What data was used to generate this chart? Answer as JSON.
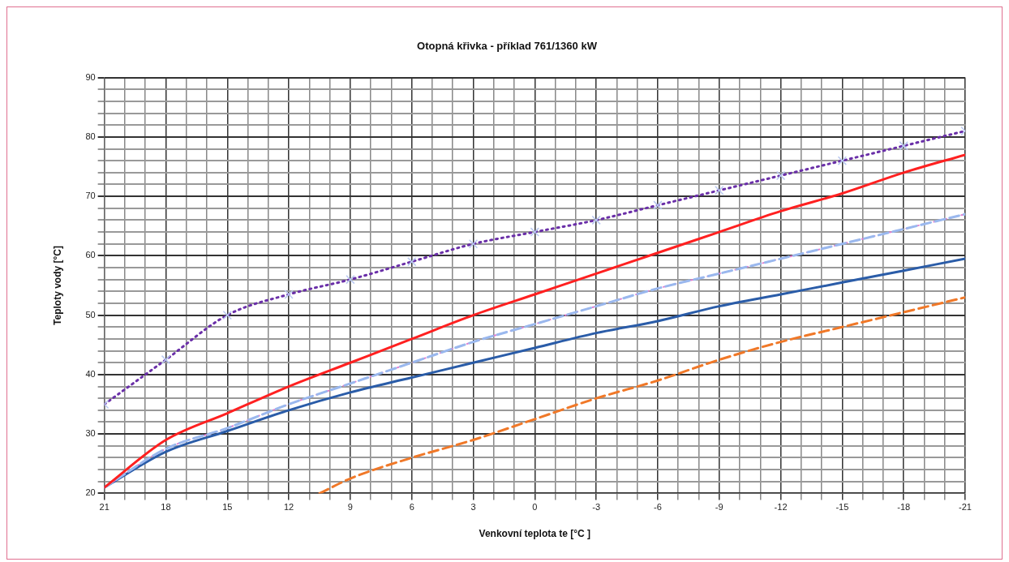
{
  "chart_data": {
    "type": "line",
    "title": "Otopná křivka - příklad 761/1360 kW",
    "xlabel": "Venkovní teplota te [°C ]",
    "ylabel": "Teploty vody [°C]",
    "x": [
      21,
      18,
      15,
      12,
      9,
      6,
      3,
      0,
      -3,
      -6,
      -9,
      -12,
      -15,
      -18,
      -21
    ],
    "xlim": [
      21,
      -21
    ],
    "ylim": [
      20,
      90
    ],
    "xticks": [
      21,
      {
        "value": 20,
        "label": null
      },
      {
        "value": 19,
        "label": null
      },
      18,
      {
        "value": 17,
        "label": null
      },
      {
        "value": 16,
        "label": null
      },
      15,
      {
        "value": 14,
        "label": null
      },
      {
        "value": 13,
        "label": null
      },
      12,
      {
        "value": 11,
        "label": null
      },
      {
        "value": 10,
        "label": null
      },
      9,
      {
        "value": 8,
        "label": null
      },
      {
        "value": 7,
        "label": null
      },
      6,
      {
        "value": 5,
        "label": null
      },
      {
        "value": 4,
        "label": null
      },
      3,
      {
        "value": 2,
        "label": null
      },
      {
        "value": 1,
        "label": null
      },
      0,
      {
        "value": -1,
        "label": null
      },
      {
        "value": -2,
        "label": null
      },
      -3,
      {
        "value": -4,
        "label": null
      },
      {
        "value": -5,
        "label": null
      },
      -6,
      {
        "value": -7,
        "label": null
      },
      {
        "value": -8,
        "label": null
      },
      -9,
      {
        "value": -10,
        "label": null
      },
      {
        "value": -11,
        "label": null
      },
      -12,
      {
        "value": -13,
        "label": null
      },
      {
        "value": -14,
        "label": null
      },
      -15,
      {
        "value": -16,
        "label": null
      },
      {
        "value": -17,
        "label": null
      },
      -18,
      {
        "value": -19,
        "label": null
      },
      {
        "value": -20,
        "label": null
      },
      -21
    ],
    "yticks": [
      20,
      {
        "value": 22,
        "label": null
      },
      {
        "value": 24,
        "label": null
      },
      {
        "value": 26,
        "label": null
      },
      {
        "value": 28,
        "label": null
      },
      30,
      {
        "value": 32,
        "label": null
      },
      {
        "value": 34,
        "label": null
      },
      {
        "value": 36,
        "label": null
      },
      {
        "value": 38,
        "label": null
      },
      40,
      {
        "value": 42,
        "label": null
      },
      {
        "value": 44,
        "label": null
      },
      {
        "value": 46,
        "label": null
      },
      {
        "value": 48,
        "label": null
      },
      50,
      {
        "value": 52,
        "label": null
      },
      {
        "value": 54,
        "label": null
      },
      {
        "value": 56,
        "label": null
      },
      {
        "value": 58,
        "label": null
      },
      60,
      {
        "value": 62,
        "label": null
      },
      {
        "value": 64,
        "label": null
      },
      {
        "value": 66,
        "label": null
      },
      {
        "value": 68,
        "label": null
      },
      70,
      {
        "value": 72,
        "label": null
      },
      {
        "value": 74,
        "label": null
      },
      {
        "value": 76,
        "label": null
      },
      {
        "value": 78,
        "label": null
      },
      80,
      {
        "value": 82,
        "label": null
      },
      {
        "value": 84,
        "label": null
      },
      {
        "value": 86,
        "label": null
      },
      {
        "value": 88,
        "label": null
      },
      90
    ],
    "grid": true,
    "legend": false,
    "series": [
      {
        "color": "#6a2fa8",
        "line_style": "dotted",
        "marker": "cross",
        "values": [
          35,
          42.5,
          50,
          53.5,
          56,
          59,
          62,
          64,
          66,
          68.5,
          71,
          73.5,
          76,
          78.5,
          81
        ]
      },
      {
        "color": "#ff2020",
        "line_style": "solid",
        "marker": "none",
        "values": [
          21,
          29,
          33.5,
          38,
          42,
          46,
          50,
          53.5,
          57,
          60.5,
          64,
          67.5,
          70.5,
          74,
          77
        ]
      },
      {
        "color": "#9ab8ee",
        "line_style": "dashed",
        "marker": "none",
        "values": [
          21,
          27.5,
          31,
          35,
          38.5,
          42,
          45.5,
          48.5,
          51.5,
          54.5,
          57,
          59.5,
          62,
          64.5,
          67
        ]
      },
      {
        "color": "#e080d0",
        "line_style": "dotted",
        "marker": "none",
        "values": [
          21,
          27.5,
          31,
          35,
          38.5,
          42,
          45.5,
          48.5,
          51.5,
          54.5,
          57,
          59.5,
          62,
          64.5,
          67
        ]
      },
      {
        "color": "#2a5ca8",
        "line_style": "solid",
        "marker": "none",
        "values": [
          21,
          27,
          30.5,
          34,
          37,
          39.5,
          42,
          44.5,
          47,
          49,
          51.5,
          53.5,
          55.5,
          57.5,
          59.5
        ]
      },
      {
        "color": "#f07828",
        "line_style": "dashed",
        "marker": "none",
        "x": [
          10.5,
          9,
          6,
          3,
          0,
          -3,
          -6,
          -9,
          -12,
          -15,
          -18,
          -21
        ],
        "values": [
          20,
          22.5,
          26,
          29,
          32.5,
          36,
          39,
          42.5,
          45.5,
          48,
          50.5,
          53
        ]
      }
    ]
  }
}
